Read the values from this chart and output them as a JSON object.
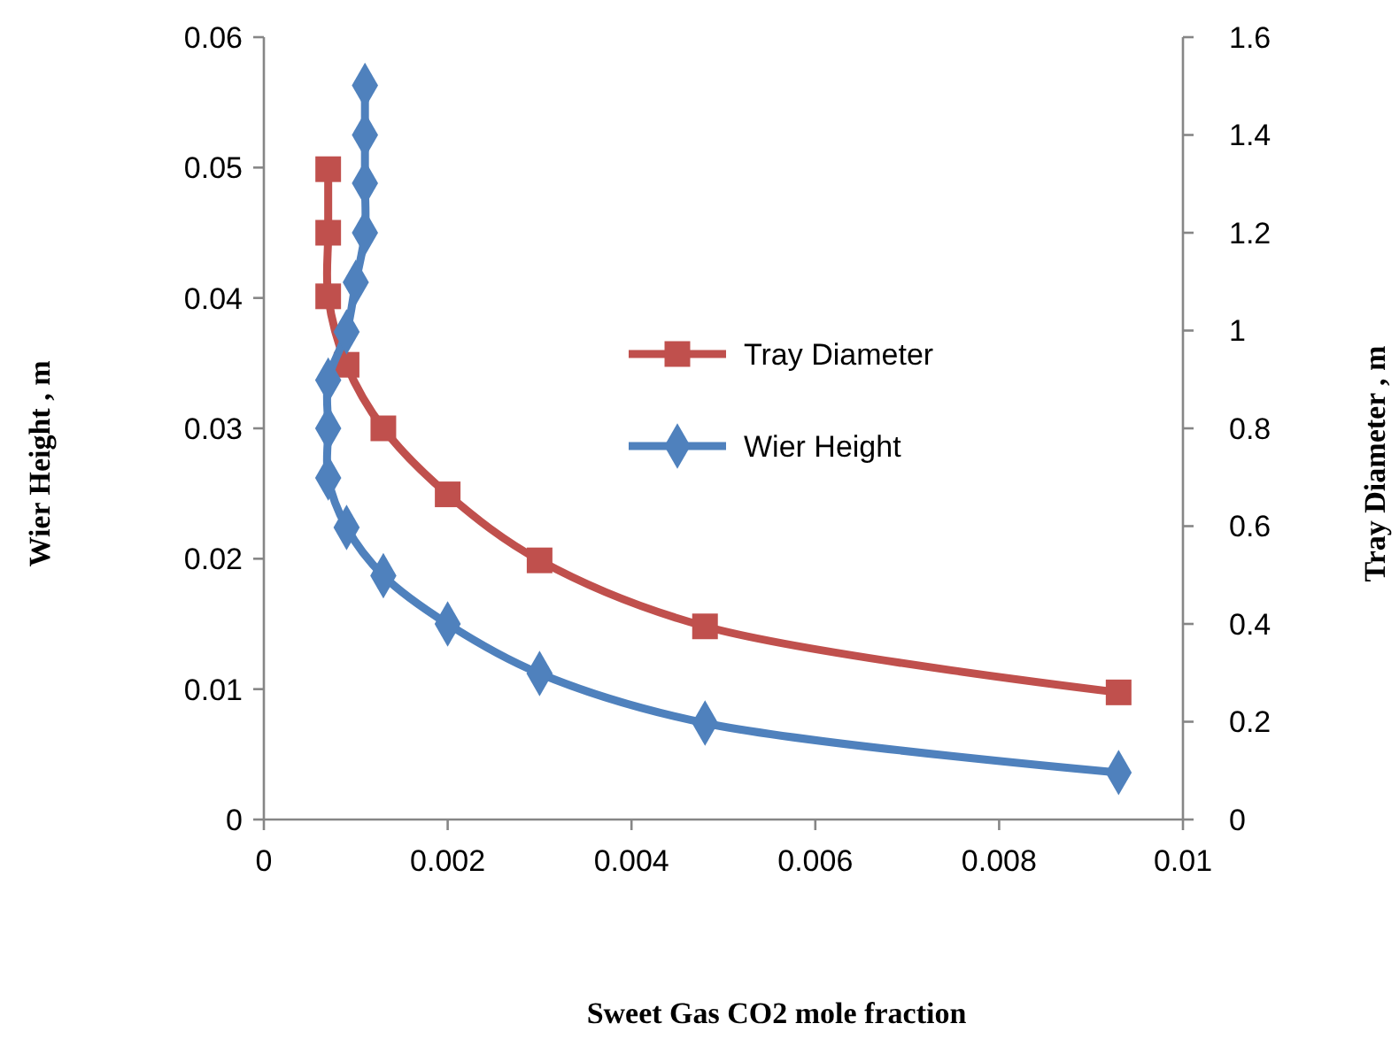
{
  "chart_data": {
    "type": "line",
    "xlabel": "Sweet Gas CO2 mole fraction",
    "ylabel": "Wier Height , m",
    "y2label": "Tray Diameter , m",
    "xlim": [
      0,
      0.01
    ],
    "xticks": [
      0,
      0.002,
      0.004,
      0.006,
      0.008,
      0.01
    ],
    "ylim": [
      0,
      0.06
    ],
    "yticks": [
      0,
      0.01,
      0.02,
      0.03,
      0.04,
      0.05,
      0.06
    ],
    "y2lim": [
      0,
      1.6
    ],
    "y2ticks": [
      0,
      0.2,
      0.4,
      0.6,
      0.8,
      1,
      1.2,
      1.4,
      1.6
    ],
    "legend": "right",
    "grid": false,
    "line_style": "solid",
    "series": [
      {
        "name": "Tray Diameter",
        "color": "#c0504d",
        "axis": "y2",
        "marker": "square",
        "x": [
          0.0007,
          0.0007,
          0.0007,
          0.0009,
          0.0013,
          0.002,
          0.003,
          0.0048,
          0.0093
        ],
        "values": [
          1.33,
          1.2,
          1.07,
          0.93,
          0.8,
          0.665,
          0.53,
          0.395,
          0.26
        ]
      },
      {
        "name": "Wier Height",
        "color": "#4f81bd",
        "axis": "y",
        "marker": "diamond",
        "x": [
          0.0011,
          0.0011,
          0.0011,
          0.0011,
          0.001,
          0.0009,
          0.0007,
          0.0007,
          0.0007,
          0.0009,
          0.0013,
          0.002,
          0.003,
          0.0048,
          0.0093
        ],
        "values": [
          0.0563,
          0.0525,
          0.0488,
          0.045,
          0.0412,
          0.0374,
          0.0337,
          0.03,
          0.0262,
          0.0224,
          0.0187,
          0.015,
          0.0112,
          0.0074,
          0.0036
        ]
      }
    ]
  }
}
